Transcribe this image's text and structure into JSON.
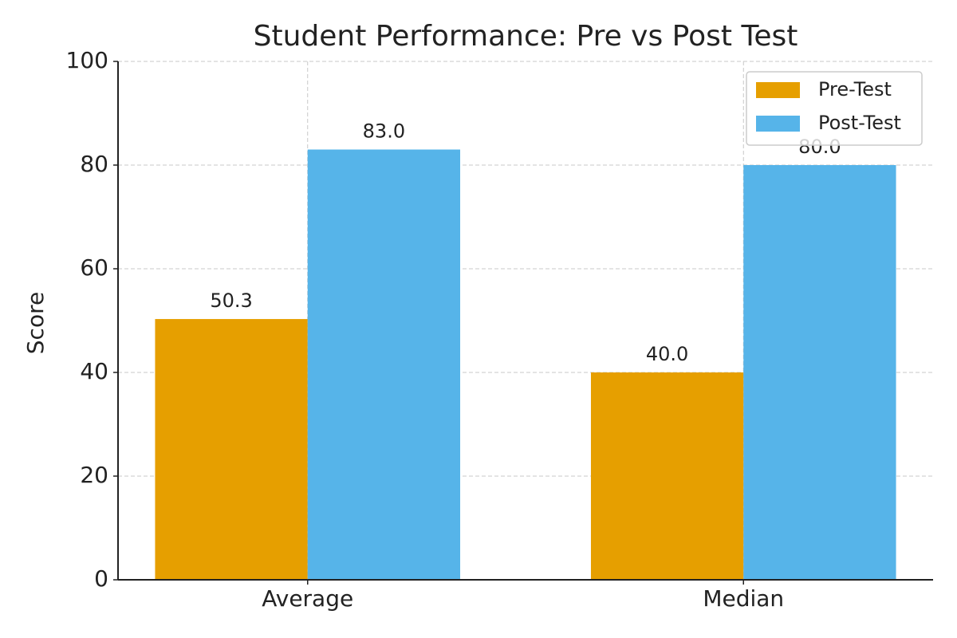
{
  "chart_data": {
    "type": "bar",
    "title": "Student Performance: Pre vs Post Test",
    "y_label": "Score",
    "categories": [
      "Average",
      "Median"
    ],
    "series": [
      {
        "name": "Pre-Test",
        "color": "#e69f00",
        "values": [
          50.3,
          40
        ],
        "value_labels": [
          "50.3",
          "40.0"
        ]
      },
      {
        "name": "Post-Test",
        "color": "#56b4e9",
        "values": [
          83,
          80
        ],
        "value_labels": [
          "83.0",
          "80.0"
        ]
      }
    ],
    "ylim": [
      0,
      100
    ],
    "yticks": [
      0,
      20,
      40,
      60,
      80,
      100
    ],
    "grid": true,
    "legend": "upper right"
  }
}
